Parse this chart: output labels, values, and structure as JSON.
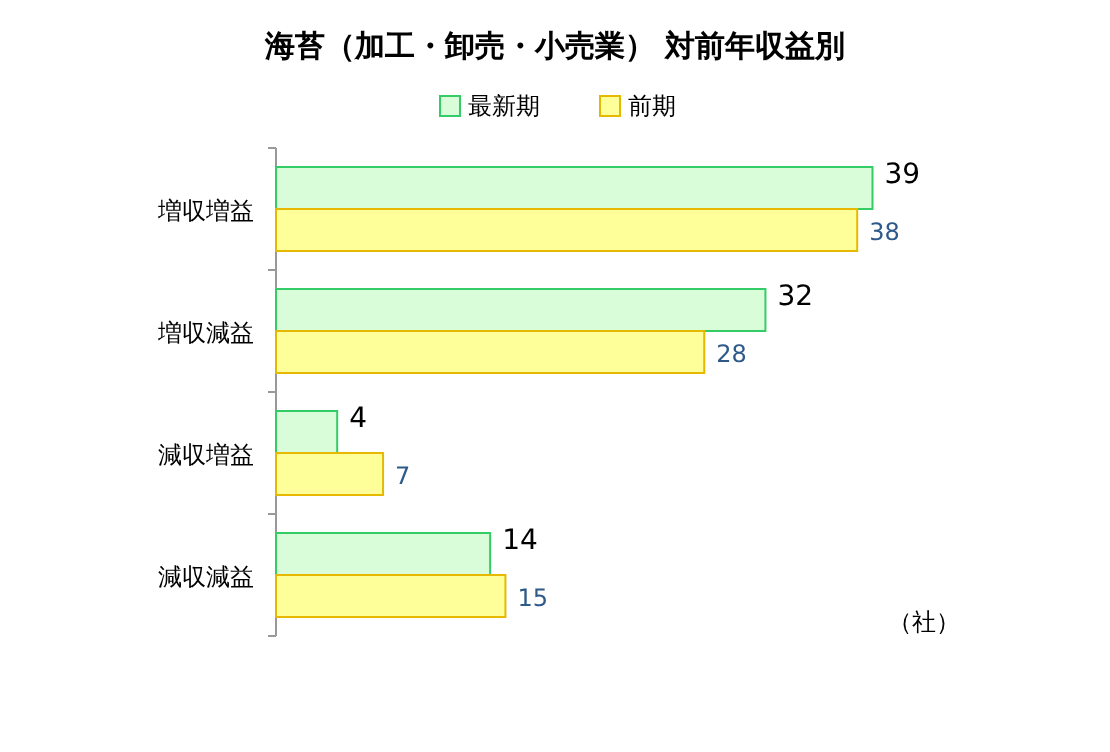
{
  "chart_data": {
    "type": "bar",
    "orientation": "horizontal",
    "title": "海苔（加工・卸売・小売業） 対前年収益別",
    "categories": [
      "増収増益",
      "増収減益",
      "減収増益",
      "減収減益"
    ],
    "series": [
      {
        "name": "最新期",
        "color": "#d9fdd9",
        "values": [
          39,
          32,
          4,
          14
        ]
      },
      {
        "name": "前期",
        "color": "#ffff99",
        "values": [
          38,
          28,
          7,
          15
        ]
      }
    ],
    "data_labels": true,
    "legend": "top",
    "annotations": [
      "（社）"
    ]
  }
}
